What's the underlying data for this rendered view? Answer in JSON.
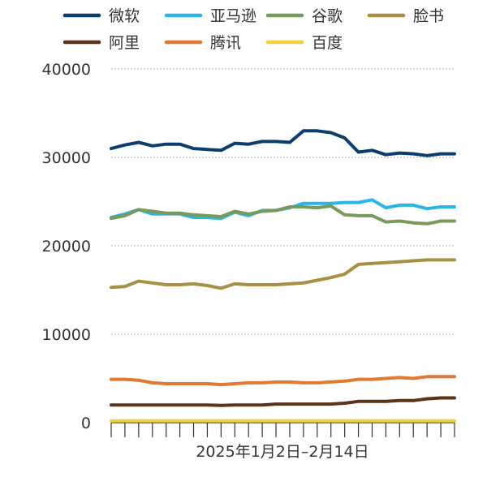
{
  "chart_data": {
    "type": "line",
    "title": "",
    "xlabel": "2025年1月2日–2月14日",
    "ylabel": "",
    "ylim": [
      0,
      40000
    ],
    "yticks": [
      "0",
      "10000",
      "20000",
      "30000",
      "40000"
    ],
    "grid": "horizontal dotted",
    "legend_position": "top",
    "series": [
      {
        "name": "微软",
        "color": "#0b3d6e",
        "values": [
          31000,
          31400,
          31700,
          31300,
          31500,
          31500,
          31000,
          30900,
          30800,
          31600,
          31500,
          31800,
          31800,
          31700,
          33000,
          33000,
          32800,
          32200,
          30600,
          30800,
          30300,
          30500,
          30400,
          30200,
          30400,
          30400
        ]
      },
      {
        "name": "亚马逊",
        "color": "#29b5e8",
        "values": [
          23200,
          23600,
          24100,
          23600,
          23600,
          23600,
          23200,
          23200,
          23100,
          23800,
          23400,
          24000,
          24000,
          24300,
          24800,
          24800,
          24800,
          24900,
          24900,
          25200,
          24300,
          24600,
          24600,
          24200,
          24400,
          24400
        ]
      },
      {
        "name": "谷歌",
        "color": "#7a9a5b",
        "values": [
          23100,
          23400,
          24100,
          23900,
          23700,
          23700,
          23500,
          23400,
          23300,
          23900,
          23600,
          23900,
          24000,
          24400,
          24400,
          24300,
          24500,
          23500,
          23400,
          23400,
          22700,
          22800,
          22600,
          22500,
          22800,
          22800
        ]
      },
      {
        "name": "脸书",
        "color": "#a88f42",
        "values": [
          15300,
          15400,
          16000,
          15800,
          15600,
          15600,
          15700,
          15500,
          15200,
          15700,
          15600,
          15600,
          15600,
          15700,
          15800,
          16100,
          16400,
          16800,
          17900,
          18000,
          18100,
          18200,
          18300,
          18400,
          18400,
          18400
        ]
      },
      {
        "name": "阿里",
        "color": "#5a3318",
        "values": [
          2000,
          2000,
          2000,
          2000,
          2000,
          2000,
          2000,
          2000,
          1950,
          2000,
          2000,
          2000,
          2100,
          2100,
          2100,
          2100,
          2100,
          2200,
          2400,
          2400,
          2400,
          2500,
          2500,
          2700,
          2800,
          2800
        ]
      },
      {
        "name": "腾讯",
        "color": "#e07a33",
        "values": [
          4900,
          4900,
          4800,
          4500,
          4400,
          4400,
          4400,
          4400,
          4300,
          4400,
          4500,
          4500,
          4600,
          4600,
          4500,
          4500,
          4600,
          4700,
          4900,
          4900,
          5000,
          5100,
          5000,
          5200,
          5200,
          5200
        ]
      },
      {
        "name": "百度",
        "color": "#f0cf3c",
        "values": [
          200,
          200,
          200,
          200,
          200,
          200,
          200,
          200,
          200,
          200,
          200,
          200,
          200,
          200,
          200,
          200,
          200,
          200,
          200,
          200,
          200,
          200,
          200,
          200,
          200,
          200
        ]
      }
    ]
  }
}
